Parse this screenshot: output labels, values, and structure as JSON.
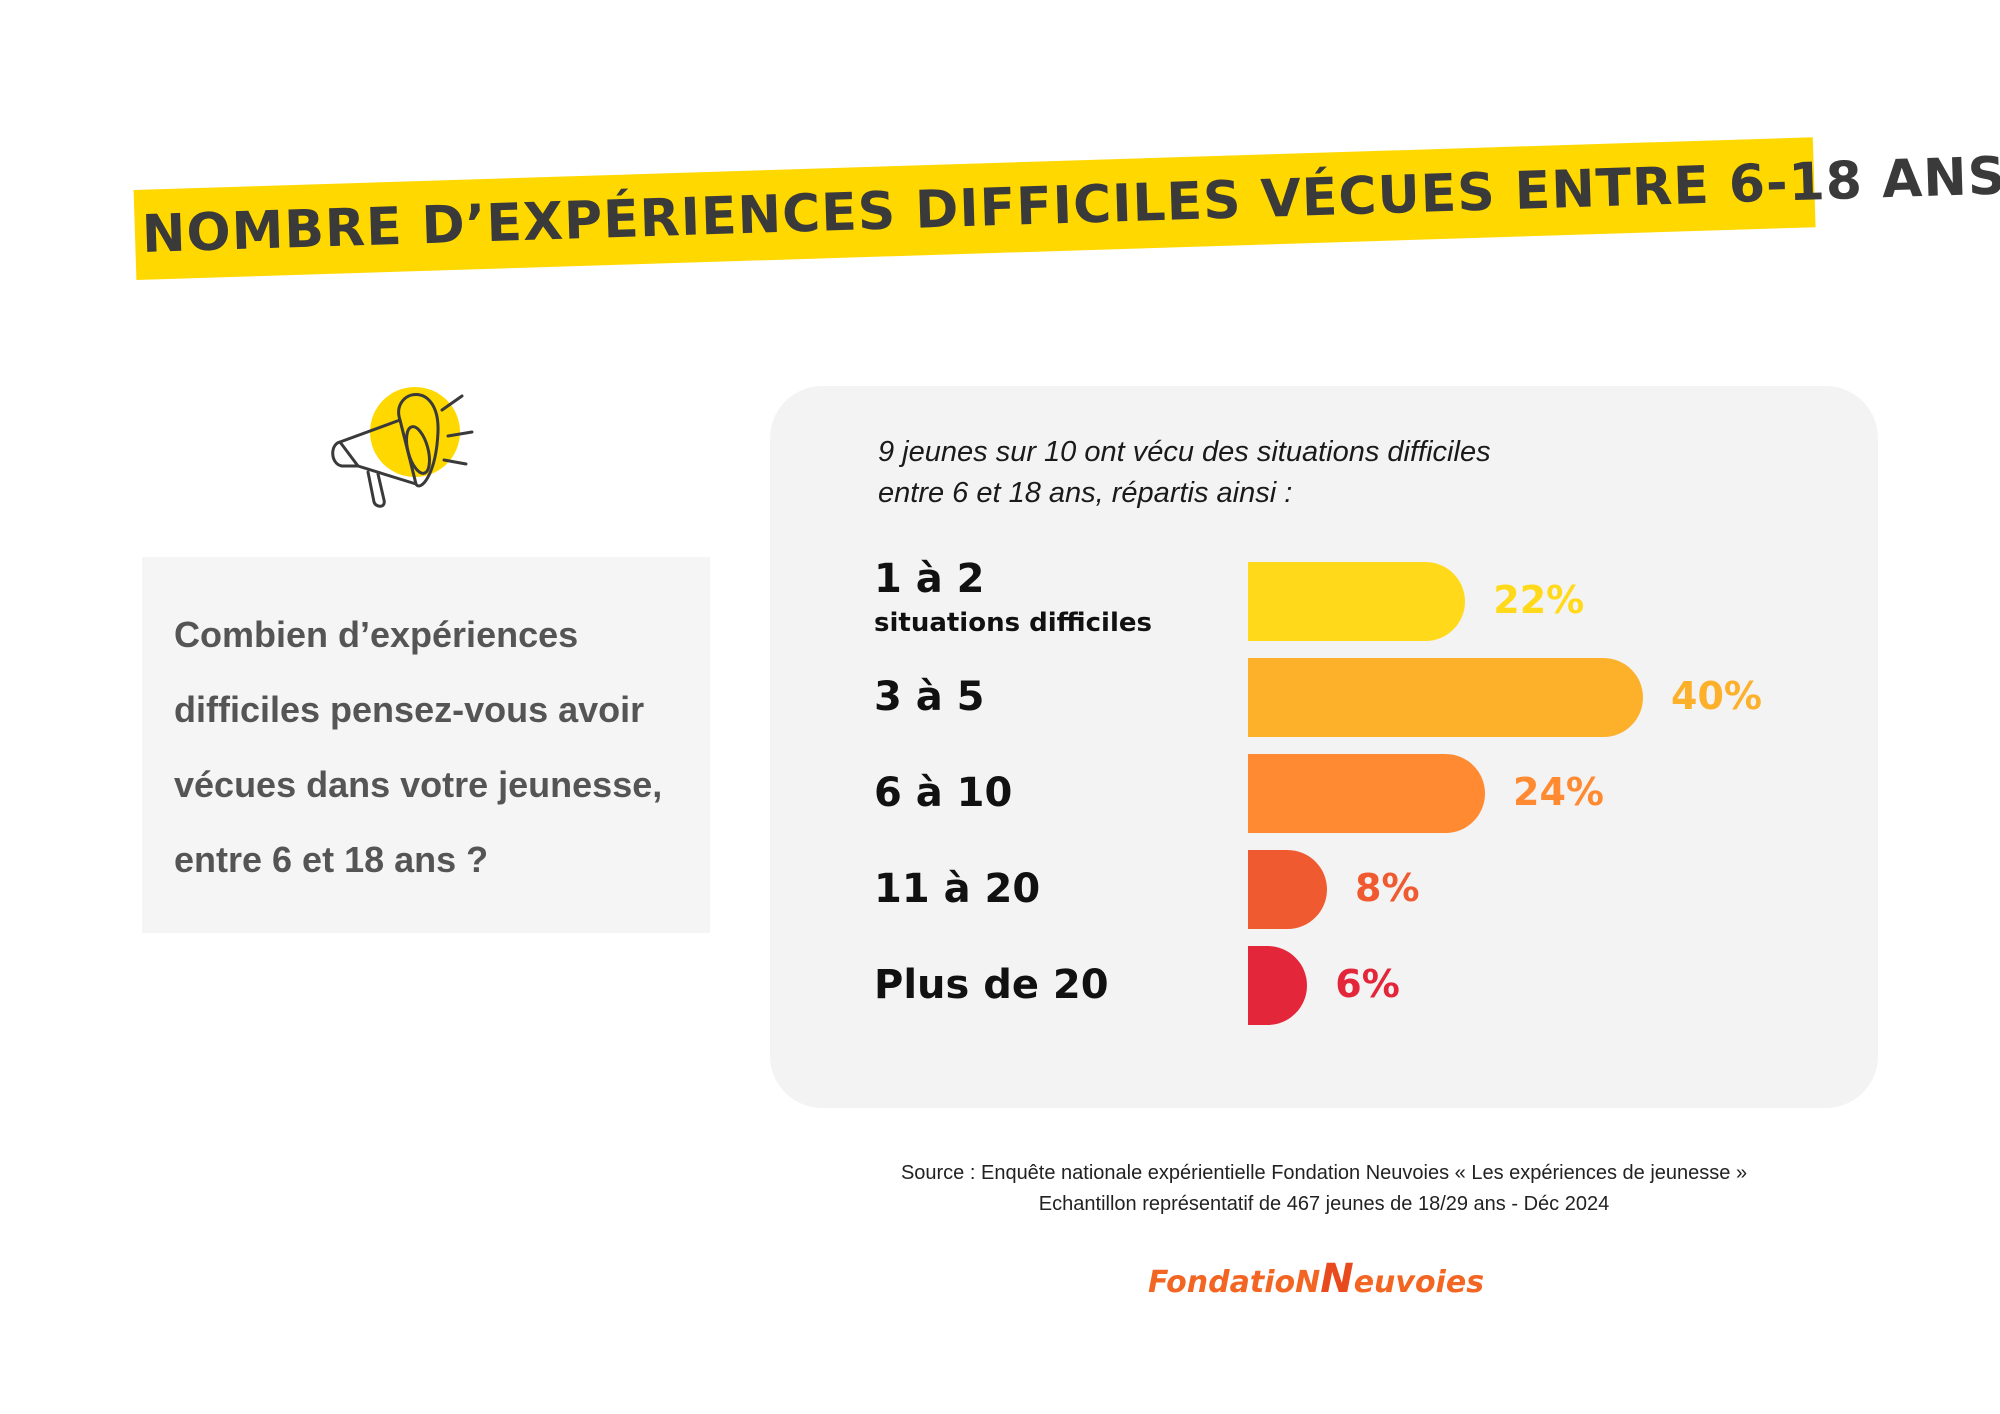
{
  "title": "NOMBRE D’EXPÉRIENCES DIFFICILES VÉCUES ENTRE 6-18 ANS",
  "question": "Combien d’expériences difficiles pensez-vous avoir vécues dans votre jeunesse, entre 6 et 18 ans ?",
  "icons": {
    "megaphone": "megaphone-icon"
  },
  "colors": {
    "title_band": "#FFD800",
    "panel": "#f3f3f3"
  },
  "chart_data": {
    "type": "bar",
    "orientation": "horizontal",
    "subtitle_line1": "9 jeunes sur 10 ont vécu des situations difficiles",
    "subtitle_line2": "entre 6 et 18 ans, répartis ainsi :",
    "categories": [
      {
        "main": "1 à 2",
        "sub": "situations difficiles"
      },
      {
        "main": "3 à 5",
        "sub": ""
      },
      {
        "main": "6 à 10",
        "sub": ""
      },
      {
        "main": "11 à 20",
        "sub": ""
      },
      {
        "main": "Plus de 20",
        "sub": ""
      }
    ],
    "values": [
      22,
      40,
      24,
      8,
      6
    ],
    "value_labels": [
      "22%",
      "40%",
      "24%",
      "8%",
      "6%"
    ],
    "colors": [
      "#FFD91A",
      "#FDB02A",
      "#FF8A32",
      "#F05A30",
      "#E4263A"
    ],
    "xlim": [
      0,
      40
    ]
  },
  "source": {
    "line1": "Source : Enquête nationale expérientielle Fondation Neuvoies « Les expériences de jeunesse »",
    "line2": "Echantillon représentatif de 467 jeunes de 18/29 ans -  Déc 2024"
  },
  "logo": {
    "part1": "FondatioN",
    "part2": "N",
    "part3": "euvoies"
  }
}
